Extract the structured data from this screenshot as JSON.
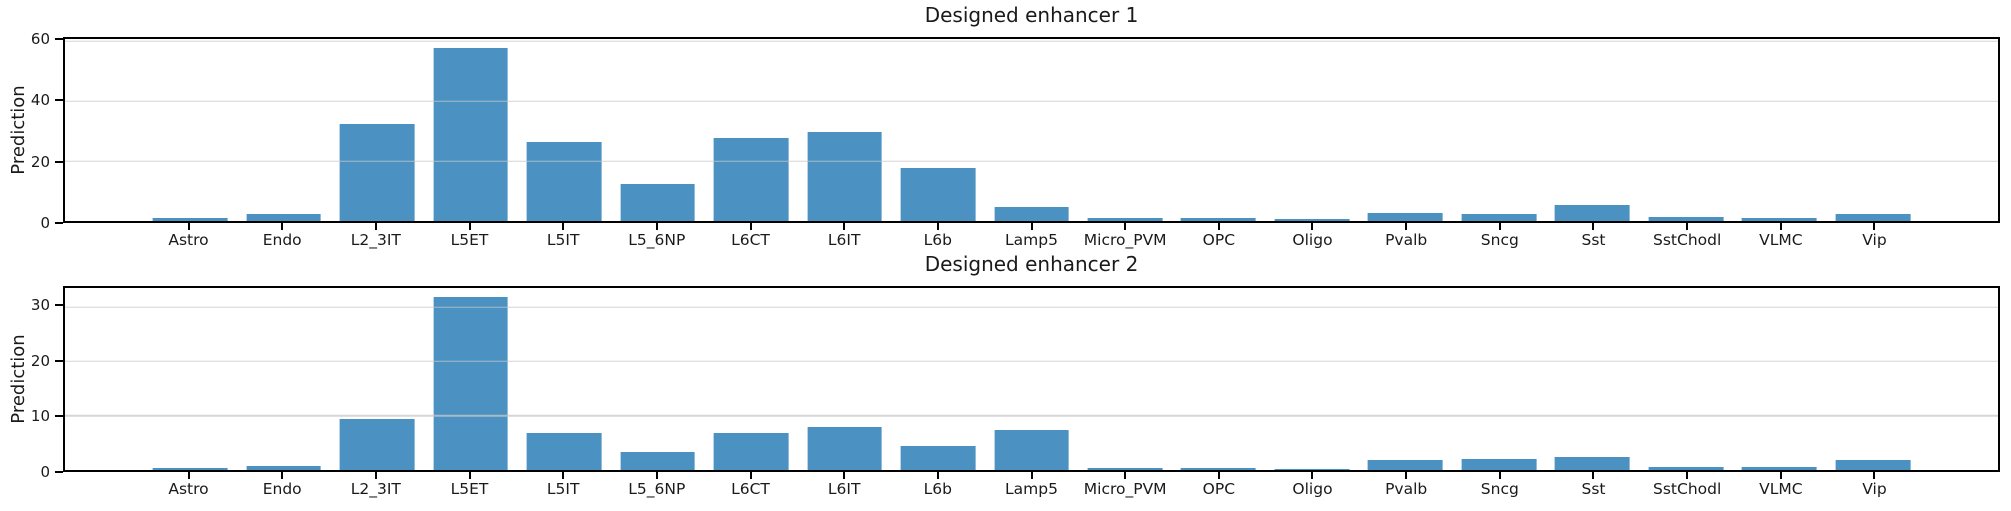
{
  "style": {
    "bar_color": "#4b92c3",
    "grid_color": "#d4d4d4",
    "spine_color": "#000000",
    "background_color": "#ffffff",
    "text_color": "#1a1a1a"
  },
  "categories": [
    "Astro",
    "Endo",
    "L2_3IT",
    "L5ET",
    "L5IT",
    "L5_6NP",
    "L6CT",
    "L6IT",
    "L6b",
    "Lamp5",
    "Micro_PVM",
    "OPC",
    "Oligo",
    "Pvalb",
    "Sncg",
    "Sst",
    "SstChodl",
    "VLMC",
    "Vip"
  ],
  "chart_data": [
    {
      "type": "bar",
      "title": "Designed enhancer 1",
      "xlabel": "",
      "ylabel": "Prediction",
      "categories": [
        "Astro",
        "Endo",
        "L2_3IT",
        "L5ET",
        "L5IT",
        "L5_6NP",
        "L6CT",
        "L6IT",
        "L6b",
        "Lamp5",
        "Micro_PVM",
        "OPC",
        "Oligo",
        "Pvalb",
        "Sncg",
        "Sst",
        "SstChodl",
        "VLMC",
        "Vip"
      ],
      "values": [
        0.9,
        2.5,
        32.5,
        57.8,
        26.4,
        12.3,
        27.6,
        29.6,
        17.7,
        4.6,
        1.0,
        0.9,
        0.8,
        2.6,
        2.3,
        5.5,
        1.4,
        1.0,
        2.3
      ],
      "yticks": [
        0,
        20,
        40,
        60
      ],
      "ylim": [
        0,
        60.7
      ],
      "grid": true,
      "legend": null,
      "bar_color": "#4b92c3"
    },
    {
      "type": "bar",
      "title": "Designed enhancer 2",
      "xlabel": "",
      "ylabel": "Prediction",
      "categories": [
        "Astro",
        "Endo",
        "L2_3IT",
        "L5ET",
        "L5IT",
        "L5_6NP",
        "L6CT",
        "L6IT",
        "L6b",
        "Lamp5",
        "Micro_PVM",
        "OPC",
        "Oligo",
        "Pvalb",
        "Sncg",
        "Sst",
        "SstChodl",
        "VLMC",
        "Vip"
      ],
      "values": [
        0.4,
        0.8,
        9.3,
        31.9,
        6.9,
        3.4,
        6.8,
        8.0,
        4.4,
        7.3,
        0.45,
        0.45,
        0.2,
        1.8,
        2.1,
        2.4,
        0.5,
        0.5,
        1.9
      ],
      "yticks": [
        0,
        10,
        20,
        30
      ],
      "ylim": [
        0,
        33.5
      ],
      "grid": true,
      "legend": null,
      "bar_color": "#4b92c3"
    }
  ]
}
